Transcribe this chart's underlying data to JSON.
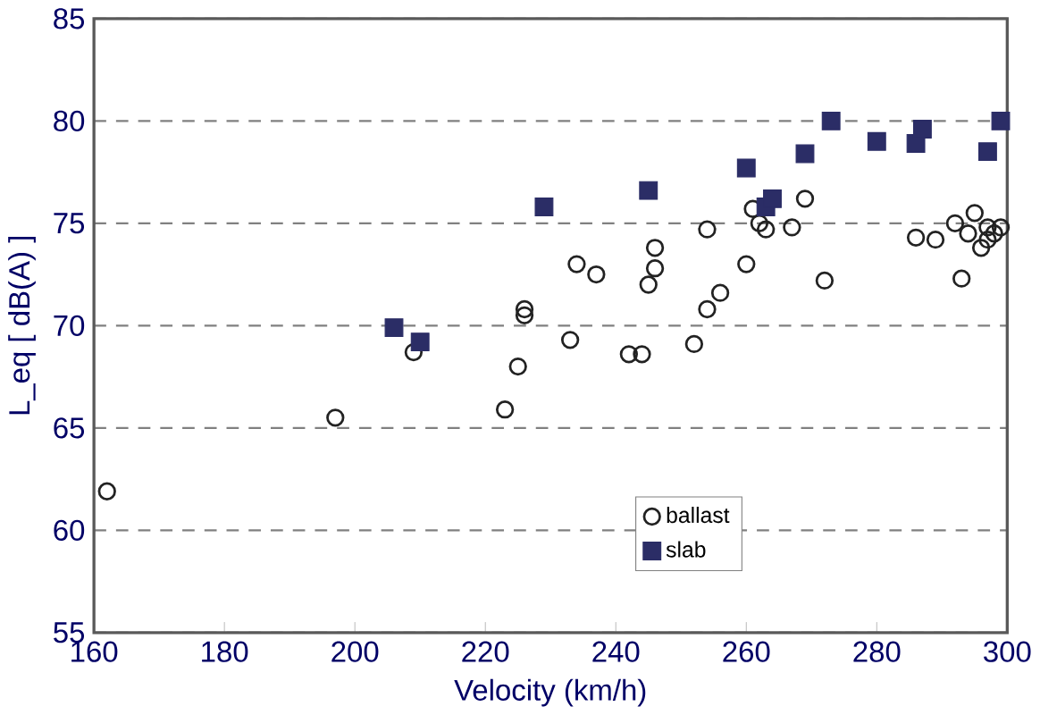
{
  "chart_data": {
    "type": "scatter",
    "xlabel": "Velocity (km/h)",
    "ylabel": "L_eq [ dB(A) ]",
    "xlim": [
      160,
      300
    ],
    "ylim": [
      55,
      85
    ],
    "xticks": [
      160,
      180,
      200,
      220,
      240,
      260,
      280,
      300
    ],
    "yticks": [
      55,
      60,
      65,
      70,
      75,
      80,
      85
    ],
    "grid": "y",
    "legend": "bottom right",
    "series": [
      {
        "name": "ballast",
        "color": "#222222",
        "marker": "circle",
        "x": [
          162,
          197,
          209,
          223,
          225,
          226,
          226,
          233,
          234,
          237,
          242,
          244,
          245,
          246,
          246,
          252,
          254,
          254,
          256,
          260,
          261,
          262,
          263,
          267,
          269,
          272,
          286,
          289,
          292,
          293,
          294,
          295,
          296,
          297,
          297,
          298,
          299
        ],
        "values": [
          61.9,
          65.5,
          68.7,
          65.9,
          68,
          70.5,
          70.8,
          69.3,
          73,
          72.5,
          68.6,
          68.6,
          72,
          72.8,
          73.8,
          69.1,
          70.8,
          74.7,
          71.6,
          73,
          75.7,
          75,
          74.7,
          74.8,
          76.2,
          72.2,
          74.3,
          74.2,
          75,
          72.3,
          74.5,
          75.5,
          73.8,
          74.8,
          74.2,
          74.5,
          74.8
        ]
      },
      {
        "name": "slab",
        "color": "#2b2d66",
        "marker": "square",
        "x": [
          206,
          210,
          229,
          245,
          260,
          263,
          264,
          269,
          273,
          280,
          286,
          287,
          297,
          299
        ],
        "values": [
          69.9,
          69.2,
          75.8,
          76.6,
          77.7,
          75.8,
          76.2,
          78.4,
          80,
          79,
          78.9,
          79.6,
          78.5,
          80
        ]
      }
    ]
  }
}
